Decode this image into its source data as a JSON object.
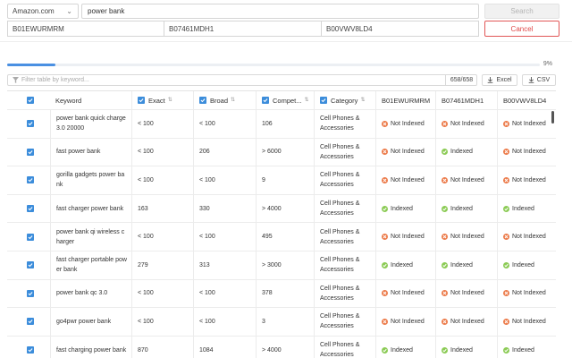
{
  "search": {
    "marketplace": "Amazon.com",
    "keyword": "power bank",
    "search_label": "Search",
    "cancel_label": "Cancel",
    "asins": [
      "B01EWURMRM",
      "B07461MDH1",
      "B00VWV8LD4"
    ]
  },
  "progress": {
    "percent_label": "9%",
    "fraction": 0.09
  },
  "toolbar": {
    "filter_placeholder": "Filter table by keyword...",
    "count": "658/658",
    "excel_label": "Excel",
    "csv_label": "CSV"
  },
  "table": {
    "columns": [
      "Keyword",
      "Exact",
      "Broad",
      "Compet...",
      "Category",
      "B01EWURMRM",
      "B07461MDH1",
      "B00VWV8LD4"
    ],
    "rows": [
      {
        "keyword": "power bank quick charge 3.0 20000",
        "exact": "< 100",
        "broad": "< 100",
        "comp": "106",
        "category": "Cell Phones & Accessories",
        "s1": "Not Indexed",
        "s2": "Not Indexed",
        "s3": "Not Indexed"
      },
      {
        "keyword": "fast power bank",
        "exact": "< 100",
        "broad": "206",
        "comp": "> 6000",
        "category": "Cell Phones & Accessories",
        "s1": "Not Indexed",
        "s2": "Indexed",
        "s3": "Not Indexed"
      },
      {
        "keyword": "gorilla gadgets power bank",
        "exact": "< 100",
        "broad": "< 100",
        "comp": "9",
        "category": "Cell Phones & Accessories",
        "s1": "Not Indexed",
        "s2": "Not Indexed",
        "s3": "Not Indexed"
      },
      {
        "keyword": "fast charger power bank",
        "exact": "163",
        "broad": "330",
        "comp": "> 4000",
        "category": "Cell Phones & Accessories",
        "s1": "Indexed",
        "s2": "Indexed",
        "s3": "Indexed"
      },
      {
        "keyword": "power bank qi wireless charger",
        "exact": "< 100",
        "broad": "< 100",
        "comp": "495",
        "category": "Cell Phones & Accessories",
        "s1": "Not Indexed",
        "s2": "Not Indexed",
        "s3": "Not Indexed"
      },
      {
        "keyword": "fast charger portable power bank",
        "exact": "279",
        "broad": "313",
        "comp": "> 3000",
        "category": "Cell Phones & Accessories",
        "s1": "Indexed",
        "s2": "Indexed",
        "s3": "Indexed"
      },
      {
        "keyword": "power bank qc 3.0",
        "exact": "< 100",
        "broad": "< 100",
        "comp": "378",
        "category": "Cell Phones & Accessories",
        "s1": "Not Indexed",
        "s2": "Not Indexed",
        "s3": "Not Indexed"
      },
      {
        "keyword": "go4pwr power bank",
        "exact": "< 100",
        "broad": "< 100",
        "comp": "3",
        "category": "Cell Phones & Accessories",
        "s1": "Not Indexed",
        "s2": "Not Indexed",
        "s3": "Not Indexed"
      },
      {
        "keyword": "fast charging power bank",
        "exact": "870",
        "broad": "1084",
        "comp": "> 4000",
        "category": "Cell Phones & Accessories",
        "s1": "Indexed",
        "s2": "Indexed",
        "s3": "Indexed"
      }
    ]
  },
  "colors": {
    "accent": "#3c8ddb",
    "not_indexed": "#ec7b4a",
    "indexed": "#8ccb56",
    "cancel": "#e04848"
  }
}
